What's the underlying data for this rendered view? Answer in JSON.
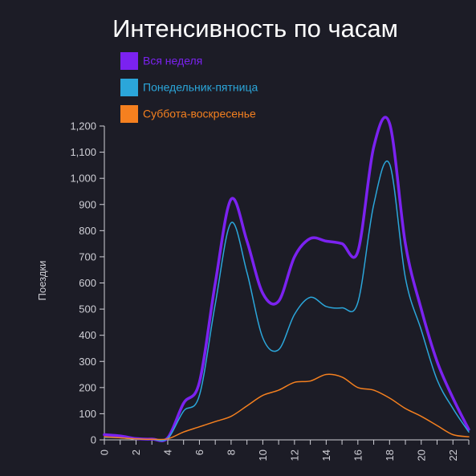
{
  "chart_data": {
    "type": "line",
    "title": "Интенсивность по часам",
    "xlabel": "",
    "ylabel": "Поездки",
    "xlim": [
      0,
      23
    ],
    "ylim": [
      0,
      1200
    ],
    "x_ticks": [
      "0",
      "2",
      "4",
      "6",
      "8",
      "10",
      "12",
      "14",
      "16",
      "18",
      "20",
      "22"
    ],
    "y_ticks": [
      "0",
      "100",
      "200",
      "300",
      "400",
      "500",
      "600",
      "700",
      "800",
      "900",
      "1,000",
      "1,100",
      "1,200"
    ],
    "legend_position": "top-left",
    "grid": false,
    "x": [
      0,
      1,
      2,
      3,
      4,
      5,
      6,
      7,
      8,
      9,
      10,
      11,
      12,
      13,
      14,
      15,
      16,
      17,
      18,
      19,
      20,
      21,
      22,
      23
    ],
    "series": [
      {
        "name": "Вся неделя",
        "color": "#7b22f0",
        "values": [
          20,
          15,
          5,
          3,
          8,
          140,
          220,
          600,
          920,
          760,
          560,
          530,
          700,
          770,
          760,
          750,
          720,
          1120,
          1210,
          750,
          500,
          300,
          160,
          40
        ]
      },
      {
        "name": "Понедельник-пятница",
        "color": "#2ba6da",
        "values": [
          10,
          8,
          3,
          2,
          6,
          110,
          170,
          520,
          830,
          640,
          390,
          345,
          480,
          545,
          510,
          505,
          525,
          900,
          1055,
          620,
          420,
          230,
          120,
          30
        ]
      },
      {
        "name": "Суббота-воскресенье",
        "color": "#f5801f",
        "values": [
          12,
          8,
          4,
          2,
          4,
          30,
          50,
          70,
          90,
          130,
          170,
          190,
          220,
          225,
          250,
          240,
          200,
          190,
          160,
          120,
          90,
          55,
          20,
          12
        ]
      }
    ]
  }
}
